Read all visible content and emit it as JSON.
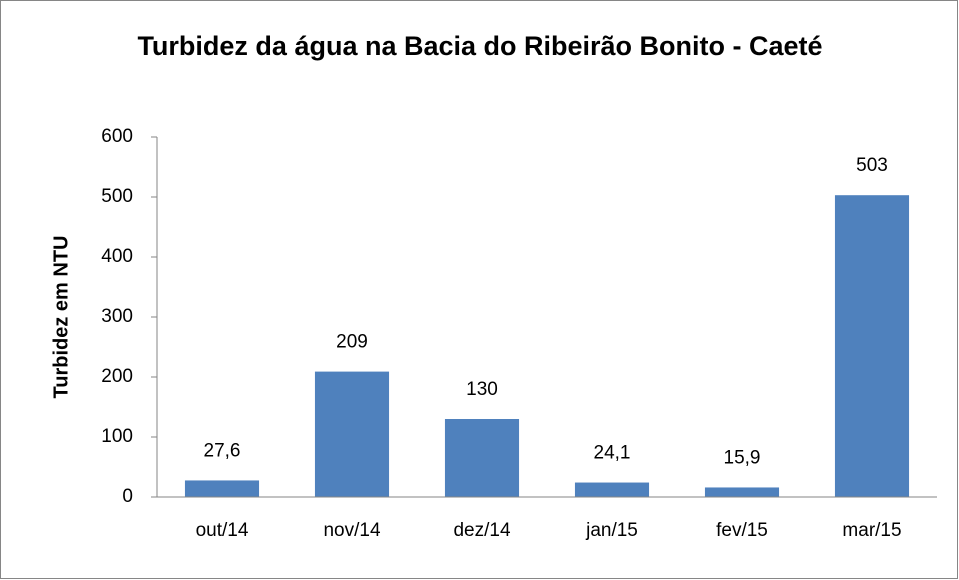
{
  "chart_data": {
    "type": "bar",
    "title": "Turbidez da água na Bacia do Ribeirão Bonito - Caeté",
    "y_label": "Turbidez em NTU",
    "categories": [
      "out/14",
      "nov/14",
      "dez/14",
      "jan/15",
      "fev/15",
      "mar/15"
    ],
    "values": [
      27.6,
      209,
      130,
      24.1,
      15.9,
      503
    ],
    "value_labels": [
      "27,6",
      "209",
      "130",
      "24,1",
      "15,9",
      "503"
    ],
    "color": "#4f81bd",
    "ylim": [
      0,
      600
    ],
    "yticks": [
      0,
      100,
      200,
      300,
      400,
      500,
      600
    ],
    "grid": false
  }
}
